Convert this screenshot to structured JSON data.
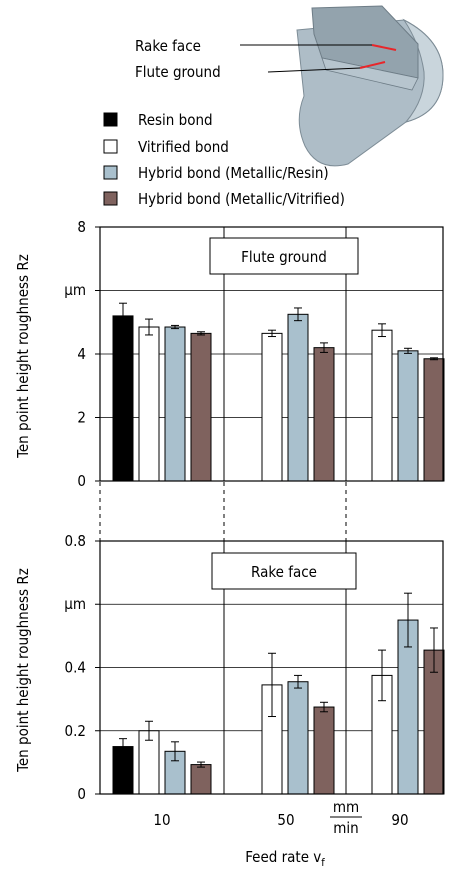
{
  "diagram": {
    "rake_label": "Rake face",
    "flute_label": "Flute ground",
    "colors": {
      "body": "#aebdc7",
      "groove": "#8f9ea8",
      "marker": "#e8262a"
    }
  },
  "legend": [
    {
      "label": "Resin bond",
      "color": "#000000"
    },
    {
      "label": "Vitrified bond",
      "color": "#ffffff"
    },
    {
      "label": "Hybrid bond (Metallic/Resin)",
      "color": "#a9c0cd"
    },
    {
      "label": "Hybrid bond (Metallic/Vitrified)",
      "color": "#7f625e"
    }
  ],
  "chart_data": [
    {
      "type": "bar",
      "title": "Flute ground",
      "ylabel": "Ten point height roughness Rz",
      "yunit": "µm",
      "ylim": [
        0,
        8
      ],
      "yticks": [
        "0",
        "2",
        "4",
        "",
        "8"
      ],
      "categories": [
        "10",
        "50",
        "90"
      ],
      "grid": true,
      "series": [
        {
          "name": "Resin bond",
          "values": [
            5.2,
            null,
            null
          ],
          "errors": [
            0.4,
            null,
            null
          ]
        },
        {
          "name": "Vitrified bond",
          "values": [
            4.85,
            4.65,
            4.75
          ],
          "errors": [
            0.25,
            0.1,
            0.2
          ]
        },
        {
          "name": "Hybrid bond (Metallic/Resin)",
          "values": [
            4.85,
            5.25,
            4.1
          ],
          "errors": [
            0.05,
            0.2,
            0.08
          ]
        },
        {
          "name": "Hybrid bond (Metallic/Vitrified)",
          "values": [
            4.65,
            4.2,
            3.85
          ],
          "errors": [
            0.05,
            0.15,
            0.03
          ]
        }
      ]
    },
    {
      "type": "bar",
      "title": "Rake face",
      "ylabel": "Ten point height roughness Rz",
      "yunit": "µm",
      "ylim": [
        0,
        0.8
      ],
      "yticks": [
        "0",
        "0.2",
        "0.4",
        "",
        "0.8"
      ],
      "categories": [
        "10",
        "50",
        "90"
      ],
      "grid": true,
      "series": [
        {
          "name": "Resin bond",
          "values": [
            0.15,
            null,
            null
          ],
          "errors": [
            0.025,
            null,
            null
          ]
        },
        {
          "name": "Vitrified bond",
          "values": [
            0.2,
            0.345,
            0.375
          ],
          "errors": [
            0.03,
            0.1,
            0.08
          ]
        },
        {
          "name": "Hybrid bond (Metallic/Resin)",
          "values": [
            0.135,
            0.355,
            0.55
          ],
          "errors": [
            0.03,
            0.02,
            0.085
          ]
        },
        {
          "name": "Hybrid bond (Metallic/Vitrified)",
          "values": [
            0.093,
            0.275,
            0.455
          ],
          "errors": [
            0.008,
            0.015,
            0.07
          ]
        }
      ]
    }
  ],
  "xaxis": {
    "label": "Feed rate v",
    "label_sub": "f",
    "unit_num": "mm",
    "unit_den": "min"
  }
}
